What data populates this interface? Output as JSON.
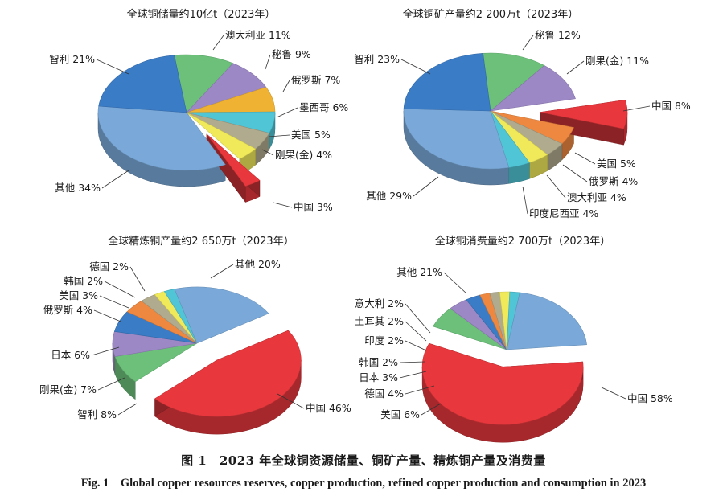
{
  "caption": {
    "cn": "图 1　2023 年全球铜资源储量、铜矿产量、精炼铜产量及消费量",
    "en": "Fig. 1　Global copper resources reserves, copper production, refined copper production and consumption in 2023"
  },
  "chart_data": [
    {
      "type": "pie",
      "title": "全球铜储量约10亿t（2023年）",
      "unit": "%",
      "slices": [
        {
          "label": "澳大利亚",
          "value": 11,
          "color": "#6cc07a",
          "exploded": false
        },
        {
          "label": "秘鲁",
          "value": 9,
          "color": "#9b88c4",
          "exploded": false
        },
        {
          "label": "俄罗斯",
          "value": 7,
          "color": "#f0b233",
          "exploded": false
        },
        {
          "label": "墨西哥",
          "value": 6,
          "color": "#4fc5d6",
          "exploded": false
        },
        {
          "label": "美国",
          "value": 5,
          "color": "#b0aa8e",
          "exploded": false
        },
        {
          "label": "刚果(金)",
          "value": 4,
          "color": "#f0ea5a",
          "exploded": false
        },
        {
          "label": "中国",
          "value": 3,
          "color": "#e8383d",
          "exploded": true
        },
        {
          "label": "其他",
          "value": 34,
          "color": "#7aa9d9",
          "exploded": false
        },
        {
          "label": "智利",
          "value": 21,
          "color": "#3b7cc6",
          "exploded": false
        }
      ]
    },
    {
      "type": "pie",
      "title": "全球铜矿产量约2 200万t（2023年）",
      "unit": "%",
      "slices": [
        {
          "label": "秘鲁",
          "value": 12,
          "color": "#6cc07a",
          "exploded": false
        },
        {
          "label": "刚果(金)",
          "value": 11,
          "color": "#9b88c4",
          "exploded": false
        },
        {
          "label": "中国",
          "value": 8,
          "color": "#e8383d",
          "exploded": true
        },
        {
          "label": "美国",
          "value": 5,
          "color": "#ee8840",
          "exploded": false
        },
        {
          "label": "俄罗斯",
          "value": 4,
          "color": "#b0aa8e",
          "exploded": false
        },
        {
          "label": "澳大利亚",
          "value": 4,
          "color": "#f0ea5a",
          "exploded": false
        },
        {
          "label": "印度尼西亚",
          "value": 4,
          "color": "#4fc5d6",
          "exploded": false
        },
        {
          "label": "其他",
          "value": 29,
          "color": "#7aa9d9",
          "exploded": false
        },
        {
          "label": "智利",
          "value": 23,
          "color": "#3b7cc6",
          "exploded": false
        }
      ]
    },
    {
      "type": "pie",
      "title": "全球精炼铜产量约2 650万t（2023年）",
      "unit": "%",
      "slices": [
        {
          "label": "中国",
          "value": 46,
          "color": "#e8383d",
          "exploded": true
        },
        {
          "label": "智利",
          "value": 8,
          "color": "#6cc07a",
          "exploded": false
        },
        {
          "label": "刚果(金)",
          "value": 7,
          "color": "#9b88c4",
          "exploded": false
        },
        {
          "label": "日本",
          "value": 6,
          "color": "#3b7cc6",
          "exploded": false
        },
        {
          "label": "俄罗斯",
          "value": 4,
          "color": "#ee8840",
          "exploded": false
        },
        {
          "label": "美国",
          "value": 3,
          "color": "#b0aa8e",
          "exploded": false
        },
        {
          "label": "韩国",
          "value": 2,
          "color": "#f0ea5a",
          "exploded": false
        },
        {
          "label": "德国",
          "value": 2,
          "color": "#4fc5d6",
          "exploded": false
        },
        {
          "label": "其他",
          "value": 20,
          "color": "#7aa9d9",
          "exploded": false
        }
      ]
    },
    {
      "type": "pie",
      "title": "全球铜消费量约2 700万t（2023年）",
      "unit": "%",
      "slices": [
        {
          "label": "中国",
          "value": 58,
          "color": "#e8383d",
          "exploded": true
        },
        {
          "label": "美国",
          "value": 6,
          "color": "#6cc07a",
          "exploded": false
        },
        {
          "label": "德国",
          "value": 4,
          "color": "#9b88c4",
          "exploded": false
        },
        {
          "label": "日本",
          "value": 3,
          "color": "#3b7cc6",
          "exploded": false
        },
        {
          "label": "韩国",
          "value": 2,
          "color": "#ee8840",
          "exploded": false
        },
        {
          "label": "印度",
          "value": 2,
          "color": "#b0aa8e",
          "exploded": false
        },
        {
          "label": "土耳其",
          "value": 2,
          "color": "#f0ea5a",
          "exploded": false
        },
        {
          "label": "意大利",
          "value": 2,
          "color": "#4fc5d6",
          "exploded": false
        },
        {
          "label": "其他",
          "value": 21,
          "color": "#7aa9d9",
          "exploded": false
        }
      ]
    }
  ]
}
